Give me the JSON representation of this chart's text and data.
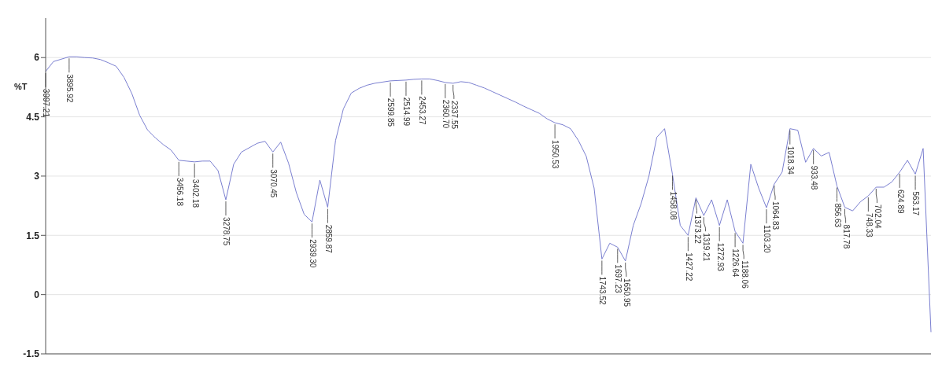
{
  "chart_data": {
    "type": "line",
    "ylabel": "%T",
    "categories": [
      "3997.21",
      null,
      null,
      "3895.92",
      null,
      null,
      null,
      null,
      null,
      null,
      null,
      null,
      null,
      null,
      null,
      null,
      null,
      "3456.18",
      null,
      "3402.18",
      null,
      null,
      null,
      "3278.75",
      null,
      null,
      null,
      null,
      null,
      "3070.45",
      null,
      null,
      null,
      null,
      "2939.30",
      null,
      "2859.87",
      null,
      null,
      null,
      null,
      null,
      null,
      null,
      "2599.85",
      null,
      "2514.99",
      null,
      "2453.27",
      null,
      null,
      "2360.70",
      "2337.55",
      null,
      null,
      null,
      null,
      null,
      null,
      null,
      null,
      null,
      null,
      null,
      null,
      "1950.53",
      null,
      null,
      null,
      null,
      null,
      "1743.52",
      null,
      "1697.23",
      "1650.95",
      null,
      null,
      null,
      null,
      null,
      "1458.08",
      null,
      "1427.22",
      "1373.22",
      "1319.21",
      null,
      "1272.93",
      null,
      "1226.64",
      "1188.06",
      null,
      null,
      "1103.20",
      "1064.83",
      null,
      "1018.34",
      null,
      null,
      "933.48",
      null,
      null,
      "856.63",
      "817.78",
      null,
      null,
      "748.33",
      "702.04",
      null,
      null,
      "624.89",
      null,
      "563.17",
      null,
      null
    ],
    "ylim": [
      -1.5,
      7
    ],
    "yticks": [
      -1.5,
      0,
      1.5,
      3,
      4.5,
      6
    ],
    "grid": "y",
    "series": [
      {
        "color": "#7a7fd0",
        "values": [
          5.65,
          5.9,
          5.96,
          6.02,
          6.02,
          6.0,
          5.99,
          5.95,
          5.87,
          5.78,
          5.5,
          5.09,
          4.54,
          4.17,
          3.97,
          3.8,
          3.66,
          3.4,
          3.38,
          3.36,
          3.38,
          3.38,
          3.14,
          2.4,
          3.3,
          3.61,
          3.72,
          3.83,
          3.88,
          3.61,
          3.86,
          3.33,
          2.58,
          2.03,
          1.84,
          2.9,
          2.21,
          3.9,
          4.7,
          5.1,
          5.22,
          5.3,
          5.35,
          5.38,
          5.41,
          5.42,
          5.43,
          5.45,
          5.46,
          5.46,
          5.42,
          5.37,
          5.35,
          5.39,
          5.37,
          5.3,
          5.23,
          5.14,
          5.05,
          4.96,
          4.87,
          4.77,
          4.68,
          4.59,
          4.45,
          4.35,
          4.3,
          4.2,
          3.9,
          3.5,
          2.7,
          0.9,
          1.3,
          1.2,
          0.85,
          1.75,
          2.3,
          3.0,
          3.98,
          4.2,
          3.05,
          1.75,
          1.5,
          2.45,
          2.0,
          2.4,
          1.75,
          2.4,
          1.6,
          1.3,
          3.3,
          2.7,
          2.2,
          2.8,
          3.1,
          4.2,
          4.16,
          3.35,
          3.7,
          3.51,
          3.6,
          2.75,
          2.21,
          2.12,
          2.35,
          2.5,
          2.72,
          2.72,
          2.85,
          3.1,
          3.4,
          3.05,
          3.7,
          -0.95
        ]
      }
    ]
  }
}
